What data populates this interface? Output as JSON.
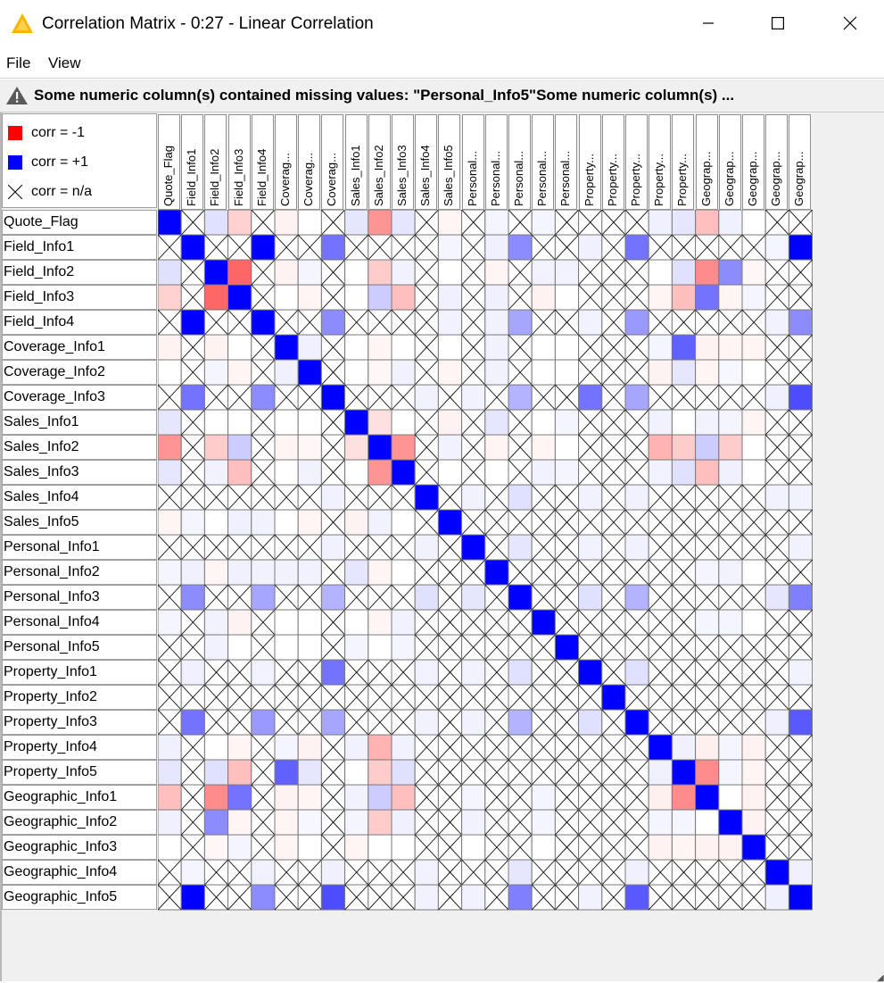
{
  "window": {
    "title": "Correlation Matrix - 0:27 - Linear Correlation",
    "minimize": "minimize",
    "maximize": "maximize",
    "close": "close"
  },
  "menu": {
    "items": [
      "File",
      "View"
    ]
  },
  "warning": {
    "icon": "warning-icon",
    "text": "Some numeric column(s) contained missing values: \"Personal_Info5\"Some numeric column(s) ..."
  },
  "legend": [
    {
      "label": "corr = -1",
      "color": "#ff0000"
    },
    {
      "label": "corr = +1",
      "color": "#0000ff"
    },
    {
      "label": "corr = n/a",
      "icon": "cross-icon"
    }
  ],
  "columns": [
    "Quote_Flag",
    "Field_Info1",
    "Field_Info2",
    "Field_Info3",
    "Field_Info4",
    "Coverag...",
    "Coverag...",
    "Coverag...",
    "Sales_Info1",
    "Sales_Info2",
    "Sales_Info3",
    "Sales_Info4",
    "Sales_Info5",
    "Personal...",
    "Personal...",
    "Personal...",
    "Personal...",
    "Personal...",
    "Property...",
    "Property...",
    "Property...",
    "Property...",
    "Property...",
    "Geograp...",
    "Geograp...",
    "Geograp...",
    "Geograp...",
    "Geograp..."
  ],
  "rows": [
    "Quote_Flag",
    "Field_Info1",
    "Field_Info2",
    "Field_Info3",
    "Field_Info4",
    "Coverage_Info1",
    "Coverage_Info2",
    "Coverage_Info3",
    "Sales_Info1",
    "Sales_Info2",
    "Sales_Info3",
    "Sales_Info4",
    "Sales_Info5",
    "Personal_Info1",
    "Personal_Info2",
    "Personal_Info3",
    "Personal_Info4",
    "Personal_Info5",
    "Property_Info1",
    "Property_Info2",
    "Property_Info3",
    "Property_Info4",
    "Property_Info5",
    "Geographic_Info1",
    "Geographic_Info2",
    "Geographic_Info3",
    "Geographic_Info4",
    "Geographic_Info5"
  ],
  "chart_data": {
    "type": "heatmap",
    "title": "",
    "color_scale": {
      "min": -1,
      "min_color": "#ff0000",
      "zero_color": "#ffffff",
      "max": 1,
      "max_color": "#0000ff"
    },
    "missing_marker": "cross",
    "values": [
      [
        1,
        null,
        0.12,
        -0.18,
        null,
        -0.05,
        0,
        null,
        0.1,
        -0.42,
        0.1,
        null,
        -0.04,
        null,
        0.04,
        null,
        0.04,
        null,
        null,
        null,
        null,
        0.06,
        0.1,
        -0.25,
        0.06,
        0,
        null,
        null
      ],
      [
        null,
        1,
        null,
        null,
        1,
        null,
        null,
        0.55,
        null,
        null,
        null,
        null,
        0.04,
        null,
        0.06,
        0.45,
        null,
        null,
        0.06,
        null,
        0.55,
        null,
        null,
        null,
        null,
        null,
        0.04,
        1
      ],
      [
        0.12,
        null,
        1,
        -0.6,
        null,
        -0.05,
        0.04,
        null,
        0,
        -0.2,
        0.05,
        null,
        0,
        null,
        -0.04,
        null,
        0.05,
        0.05,
        null,
        null,
        null,
        0,
        0.12,
        -0.45,
        0.45,
        -0.03,
        null,
        null
      ],
      [
        -0.18,
        null,
        -0.6,
        1,
        null,
        0,
        -0.04,
        null,
        0,
        0.2,
        -0.25,
        null,
        0.06,
        null,
        0.06,
        null,
        -0.05,
        0,
        null,
        null,
        null,
        -0.04,
        -0.25,
        0.55,
        -0.04,
        0.04,
        null,
        null
      ],
      [
        null,
        1,
        null,
        null,
        1,
        null,
        null,
        0.45,
        null,
        null,
        null,
        null,
        0.05,
        null,
        0.05,
        0.35,
        null,
        null,
        0.05,
        null,
        0.4,
        null,
        null,
        null,
        null,
        null,
        0.05,
        0.45
      ],
      [
        -0.05,
        null,
        -0.05,
        0,
        null,
        1,
        0.06,
        null,
        0,
        -0.04,
        0,
        null,
        0,
        null,
        0.05,
        null,
        0,
        0,
        null,
        null,
        null,
        0.04,
        0.62,
        -0.05,
        -0.04,
        -0.04,
        null,
        null
      ],
      [
        0,
        null,
        0.04,
        -0.04,
        null,
        0.06,
        1,
        null,
        0,
        -0.03,
        0.05,
        null,
        -0.04,
        null,
        0.05,
        null,
        0,
        0,
        null,
        null,
        null,
        -0.05,
        0.1,
        -0.04,
        0.03,
        0,
        null,
        null
      ],
      [
        null,
        0.55,
        null,
        null,
        0.45,
        null,
        null,
        1,
        null,
        null,
        null,
        0.05,
        null,
        0.05,
        null,
        0.3,
        null,
        null,
        0.55,
        null,
        0.35,
        null,
        null,
        null,
        null,
        null,
        0.06,
        0.7
      ],
      [
        0.1,
        null,
        0,
        0,
        null,
        0,
        0,
        null,
        1,
        -0.12,
        0,
        null,
        -0.05,
        null,
        0.1,
        null,
        0,
        0.04,
        null,
        null,
        null,
        0.05,
        0,
        0.05,
        0.04,
        -0.04,
        null,
        null
      ],
      [
        -0.42,
        null,
        -0.2,
        0.2,
        null,
        -0.04,
        -0.03,
        null,
        -0.12,
        1,
        -0.42,
        null,
        0.05,
        null,
        -0.04,
        null,
        -0.04,
        0,
        null,
        null,
        null,
        -0.3,
        -0.2,
        0.2,
        -0.2,
        0,
        null,
        null
      ],
      [
        0.1,
        null,
        0.05,
        -0.25,
        null,
        0,
        0.05,
        null,
        0,
        -0.42,
        1,
        null,
        0,
        null,
        0,
        null,
        0.05,
        0.04,
        null,
        null,
        null,
        0.05,
        0.12,
        -0.25,
        0.06,
        0,
        null,
        null
      ],
      [
        null,
        null,
        null,
        null,
        null,
        null,
        null,
        0.05,
        null,
        null,
        null,
        1,
        null,
        0.05,
        null,
        0.12,
        null,
        null,
        0.05,
        null,
        0.05,
        null,
        null,
        null,
        null,
        null,
        0.05,
        0.05
      ],
      [
        -0.04,
        0.04,
        0,
        0.06,
        0.05,
        0,
        -0.04,
        null,
        -0.05,
        0.05,
        0,
        null,
        1,
        null,
        null,
        null,
        null,
        null,
        null,
        null,
        null,
        null,
        null,
        null,
        null,
        null,
        null,
        null
      ],
      [
        null,
        null,
        null,
        null,
        null,
        null,
        null,
        0.05,
        null,
        null,
        null,
        0.05,
        null,
        1,
        null,
        0.1,
        null,
        null,
        0.05,
        null,
        0.05,
        null,
        null,
        null,
        null,
        null,
        null,
        0.05
      ],
      [
        0.04,
        0.06,
        -0.04,
        0.06,
        0.05,
        0.05,
        0.05,
        null,
        0.1,
        -0.04,
        0,
        null,
        null,
        null,
        1,
        null,
        null,
        null,
        null,
        null,
        null,
        null,
        null,
        0.04,
        0.05,
        0,
        null,
        null
      ],
      [
        null,
        0.45,
        null,
        null,
        0.35,
        null,
        null,
        0.3,
        null,
        null,
        null,
        0.12,
        null,
        0.1,
        null,
        1,
        null,
        null,
        0.12,
        null,
        0.3,
        null,
        null,
        null,
        null,
        null,
        0.1,
        0.5
      ],
      [
        0.04,
        null,
        0.05,
        -0.05,
        null,
        0,
        0,
        null,
        0,
        -0.04,
        0.05,
        null,
        null,
        null,
        null,
        null,
        1,
        null,
        null,
        null,
        null,
        null,
        null,
        0.04,
        0.04,
        0,
        null,
        null
      ],
      [
        null,
        null,
        0.05,
        0,
        null,
        0,
        0,
        null,
        0.04,
        0,
        0.04,
        null,
        null,
        null,
        null,
        null,
        null,
        1,
        null,
        null,
        null,
        null,
        null,
        null,
        null,
        null,
        null,
        null
      ],
      [
        null,
        0.06,
        null,
        null,
        0.05,
        null,
        null,
        0.55,
        null,
        null,
        null,
        0.05,
        null,
        0.05,
        null,
        0.12,
        null,
        null,
        1,
        null,
        0.12,
        null,
        null,
        null,
        null,
        null,
        null,
        0.05
      ],
      [
        null,
        null,
        null,
        null,
        null,
        null,
        null,
        null,
        null,
        null,
        null,
        null,
        null,
        null,
        null,
        null,
        null,
        null,
        null,
        1,
        null,
        null,
        null,
        null,
        null,
        null,
        null,
        null
      ],
      [
        null,
        0.55,
        null,
        null,
        0.4,
        null,
        null,
        0.35,
        null,
        null,
        null,
        0.05,
        null,
        0.05,
        null,
        0.3,
        null,
        null,
        0.12,
        null,
        1,
        null,
        null,
        null,
        null,
        null,
        0.06,
        0.65
      ],
      [
        0.06,
        null,
        0,
        -0.04,
        null,
        0.04,
        -0.05,
        null,
        0.05,
        -0.3,
        0.05,
        null,
        null,
        null,
        null,
        null,
        null,
        null,
        null,
        null,
        null,
        1,
        0.06,
        -0.06,
        0.04,
        -0.05,
        null,
        null
      ],
      [
        0.1,
        null,
        0.12,
        -0.25,
        null,
        0.62,
        0.1,
        null,
        0,
        -0.2,
        0.12,
        null,
        null,
        null,
        null,
        null,
        null,
        null,
        null,
        null,
        null,
        0.06,
        1,
        -0.45,
        0.04,
        -0.04,
        null,
        null
      ],
      [
        -0.25,
        null,
        -0.45,
        0.55,
        null,
        -0.05,
        -0.04,
        null,
        0.05,
        0.2,
        -0.25,
        null,
        null,
        0.04,
        null,
        null,
        0.04,
        null,
        null,
        null,
        null,
        -0.06,
        -0.45,
        1,
        0,
        -0.05,
        null,
        null
      ],
      [
        0.06,
        null,
        0.45,
        -0.04,
        null,
        -0.04,
        0.03,
        null,
        0.04,
        -0.2,
        0.06,
        null,
        null,
        0.05,
        null,
        null,
        0.04,
        null,
        null,
        null,
        null,
        0.04,
        0.04,
        0,
        1,
        -0.05,
        null,
        null
      ],
      [
        0,
        null,
        -0.03,
        0.04,
        null,
        -0.04,
        0,
        null,
        -0.04,
        0,
        0,
        null,
        null,
        0,
        null,
        null,
        0,
        null,
        null,
        null,
        null,
        -0.05,
        -0.04,
        -0.05,
        -0.05,
        1,
        null,
        null
      ],
      [
        null,
        0.04,
        null,
        null,
        0.05,
        null,
        null,
        0.06,
        null,
        null,
        null,
        0.05,
        null,
        null,
        null,
        0.1,
        null,
        null,
        null,
        null,
        0.06,
        null,
        null,
        null,
        null,
        null,
        1,
        0.06
      ],
      [
        null,
        1,
        null,
        null,
        0.45,
        null,
        null,
        0.7,
        null,
        null,
        null,
        0.05,
        null,
        0.05,
        null,
        0.5,
        null,
        null,
        0.05,
        null,
        0.65,
        null,
        null,
        null,
        null,
        null,
        0.06,
        1
      ]
    ]
  }
}
